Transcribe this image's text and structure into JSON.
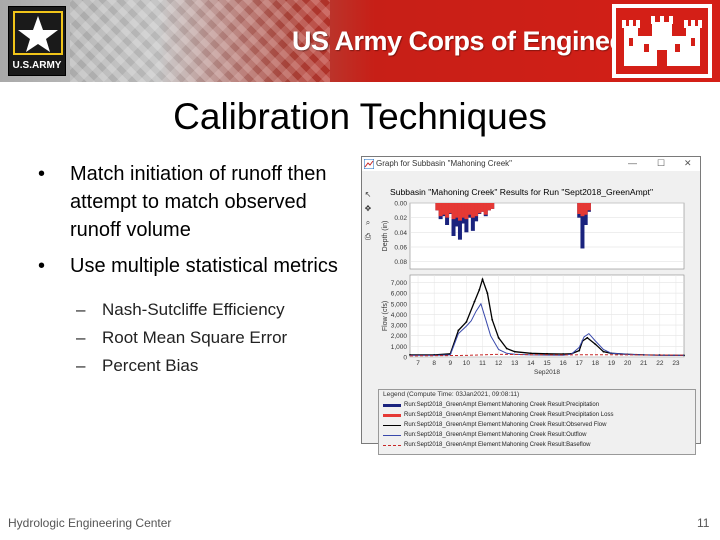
{
  "banner": {
    "title": "US Army Corps of Engineers",
    "army_logo_text": "U.S.ARMY"
  },
  "slide": {
    "title": "Calibration Techniques",
    "bullets": [
      "Match initiation of runoff then attempt to match observed runoff volume",
      "Use multiple statistical metrics"
    ],
    "sub_bullets": [
      "Nash-Sutcliffe Efficiency",
      "Root Mean Square Error",
      "Percent Bias"
    ],
    "bullet_glyph": "•",
    "dash_glyph": "–"
  },
  "graph_window": {
    "title": "Graph for Subbasin \"Mahoning Creek\"",
    "controls": [
      "—",
      "☐",
      "✕"
    ],
    "plot_title": "Subbasin \"Mahoning Creek\" Results for Run \"Sept2018_GreenAmpt\"",
    "tool_icons": [
      "arrow-icon",
      "move-icon",
      "zoom-icon",
      "print-icon"
    ],
    "legend": {
      "title": "Legend (Compute Time: 03Jan2021, 09:08:11)",
      "items": [
        {
          "label": "Run:Sept2018_GreenAmpt Element:Mahoning Creek Result:Precipitation",
          "color": "#1a237e",
          "style": "thick"
        },
        {
          "label": "Run:Sept2018_GreenAmpt Element:Mahoning Creek Result:Precipitation Loss",
          "color": "#e53935",
          "style": "thick"
        },
        {
          "label": "Run:Sept2018_GreenAmpt Element:Mahoning Creek Result:Observed Flow",
          "color": "#000000",
          "style": "marker"
        },
        {
          "label": "Run:Sept2018_GreenAmpt Element:Mahoning Creek Result:Outflow",
          "color": "#3949ab",
          "style": "solid"
        },
        {
          "label": "Run:Sept2018_GreenAmpt Element:Mahoning Creek Result:Baseflow",
          "color": "#c62828",
          "style": "dashed"
        }
      ]
    }
  },
  "chart_data": [
    {
      "type": "bar",
      "ylabel": "Depth (in)",
      "yticks": [
        "0.00",
        "0.02",
        "0.04",
        "0.06",
        "0.08"
      ],
      "ylim": [
        0,
        0.09
      ],
      "inverted": true,
      "series": [
        {
          "name": "Precipitation",
          "color": "#1a237e",
          "x": [
            8.2,
            8.4,
            8.6,
            8.8,
            9.0,
            9.2,
            9.4,
            9.6,
            9.8,
            10.0,
            10.2,
            10.4,
            10.6,
            10.8,
            11.0,
            11.2,
            11.4,
            11.6,
            17.0,
            17.2,
            17.4,
            17.6
          ],
          "values": [
            0.01,
            0.022,
            0.018,
            0.03,
            0.015,
            0.045,
            0.032,
            0.05,
            0.028,
            0.04,
            0.02,
            0.038,
            0.025,
            0.015,
            0.012,
            0.018,
            0.01,
            0.008,
            0.02,
            0.062,
            0.03,
            0.012
          ]
        },
        {
          "name": "Precipitation Loss",
          "color": "#e53935",
          "x": [
            8.2,
            8.4,
            8.6,
            8.8,
            9.0,
            9.2,
            9.4,
            9.6,
            9.8,
            10.0,
            10.2,
            10.4,
            10.6,
            10.8,
            11.0,
            11.2,
            11.4,
            11.6,
            17.0,
            17.2,
            17.4,
            17.6
          ],
          "values": [
            0.01,
            0.018,
            0.016,
            0.02,
            0.014,
            0.022,
            0.02,
            0.024,
            0.02,
            0.022,
            0.016,
            0.02,
            0.018,
            0.014,
            0.012,
            0.016,
            0.01,
            0.008,
            0.015,
            0.018,
            0.016,
            0.01
          ]
        }
      ]
    },
    {
      "type": "line",
      "ylabel": "Flow (cfs)",
      "xlabel": "Sep2018",
      "x_ticks": [
        "7",
        "8",
        "9",
        "10",
        "11",
        "12",
        "13",
        "14",
        "15",
        "16",
        "17",
        "18",
        "19",
        "20",
        "21",
        "22",
        "23"
      ],
      "yticks": [
        "0",
        "1,000",
        "2,000",
        "3,000",
        "4,000",
        "5,000",
        "6,000",
        "7,000"
      ],
      "ylim": [
        0,
        7700
      ],
      "xlim": [
        6.5,
        23.5
      ],
      "series": [
        {
          "name": "Observed Flow",
          "color": "#000000",
          "x": [
            6.5,
            8,
            9,
            9.5,
            10,
            10.5,
            10.8,
            11,
            11.3,
            11.6,
            12,
            12.5,
            13,
            14,
            15,
            16,
            16.5,
            17,
            17.2,
            17.5,
            18,
            18.5,
            19,
            20,
            21,
            22,
            23.5
          ],
          "values": [
            200,
            200,
            300,
            2500,
            3300,
            5200,
            6300,
            7300,
            6000,
            3500,
            1800,
            800,
            500,
            350,
            300,
            280,
            300,
            600,
            1500,
            1800,
            1200,
            500,
            350,
            250,
            200,
            180,
            150
          ]
        },
        {
          "name": "Outflow",
          "color": "#3949ab",
          "x": [
            6.5,
            8,
            9,
            9.5,
            10,
            10.3,
            10.6,
            10.9,
            11.2,
            11.5,
            12,
            12.5,
            13,
            14,
            15,
            16,
            16.5,
            17,
            17.3,
            17.6,
            18,
            18.5,
            19,
            20,
            21,
            22,
            23.5
          ],
          "values": [
            150,
            150,
            200,
            2200,
            2900,
            3400,
            4300,
            5000,
            3500,
            2000,
            700,
            350,
            250,
            200,
            180,
            170,
            250,
            900,
            1900,
            2200,
            1500,
            700,
            350,
            250,
            200,
            170,
            150
          ]
        },
        {
          "name": "Baseflow",
          "color": "#c62828",
          "x": [
            6.5,
            10,
            12,
            14,
            16,
            18,
            20,
            23.5
          ],
          "values": [
            100,
            150,
            250,
            220,
            200,
            220,
            200,
            180
          ]
        }
      ]
    }
  ],
  "footer": {
    "org": "Hydrologic Engineering Center",
    "page": "11"
  }
}
